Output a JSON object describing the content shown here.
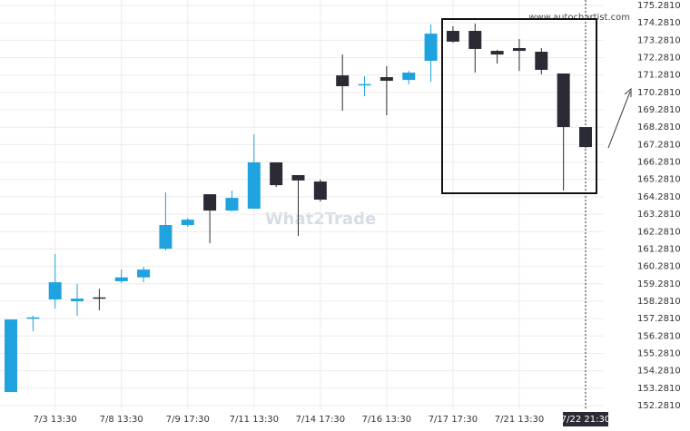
{
  "chart_data": {
    "type": "candlestick",
    "watermark": "What2Trade",
    "source": "www.autochartist.com",
    "categories": [
      null,
      null,
      "7/3 13:30",
      null,
      null,
      "7/8 13:30",
      null,
      null,
      "7/9 17:30",
      null,
      null,
      "7/11 13:30",
      null,
      null,
      "7/14 17:30",
      null,
      null,
      "7/16 13:30",
      null,
      null,
      "7/17 17:30",
      null,
      null,
      "7/21 13:30",
      null,
      null,
      "7/22 21:30"
    ],
    "open": [
      153.06,
      157.3,
      158.38,
      158.28,
      158.5,
      159.43,
      159.65,
      161.3,
      162.66,
      164.43,
      163.49,
      163.6,
      166.26,
      165.53,
      165.16,
      171.26,
      170.7,
      171.16,
      171.0,
      172.1,
      173.82,
      173.82,
      172.67,
      172.83,
      172.62,
      171.37,
      168.29
    ],
    "high": [
      157.23,
      157.45,
      160.99,
      159.27,
      159.0,
      160.1,
      160.26,
      164.53,
      163.07,
      164.43,
      164.64,
      167.87,
      166.26,
      165.53,
      165.27,
      172.46,
      171.21,
      171.79,
      171.52,
      174.19,
      174.08,
      174.24,
      172.72,
      173.35,
      172.83,
      171.37,
      168.29
    ],
    "low": [
      153.06,
      156.55,
      157.86,
      157.44,
      157.76,
      159.32,
      159.37,
      161.2,
      162.55,
      161.61,
      163.44,
      163.6,
      164.85,
      162.03,
      164.01,
      169.23,
      170.06,
      168.97,
      170.74,
      170.9,
      173.14,
      171.42,
      171.94,
      171.52,
      171.32,
      164.64,
      167.09
    ],
    "close": [
      157.23,
      157.35,
      159.37,
      158.43,
      158.46,
      159.65,
      160.1,
      162.66,
      162.97,
      163.49,
      164.22,
      166.26,
      164.95,
      165.22,
      164.12,
      170.64,
      170.76,
      170.95,
      171.42,
      173.66,
      173.2,
      172.78,
      172.46,
      172.67,
      171.58,
      168.29,
      167.14
    ],
    "up_color": "#1fa3de",
    "down_color": "#2b2b36",
    "ylim": [
      152.281,
      175.281
    ],
    "yticks": [
      {
        "value": 152.281,
        "label": "152.2810"
      },
      {
        "value": 153.281,
        "label": "153.2810"
      },
      {
        "value": 154.281,
        "label": "154.2810"
      },
      {
        "value": 155.281,
        "label": "155.2810"
      },
      {
        "value": 156.281,
        "label": "156.2810"
      },
      {
        "value": 157.281,
        "label": "157.2810"
      },
      {
        "value": 158.281,
        "label": "158.2810"
      },
      {
        "value": 159.281,
        "label": "159.2810"
      },
      {
        "value": 160.281,
        "label": "160.2810"
      },
      {
        "value": 161.281,
        "label": "161.2810"
      },
      {
        "value": 162.281,
        "label": "162.2810"
      },
      {
        "value": 163.281,
        "label": "163.2810"
      },
      {
        "value": 164.281,
        "label": "164.2810"
      },
      {
        "value": 165.281,
        "label": "165.2810"
      },
      {
        "value": 166.281,
        "label": "166.2810"
      },
      {
        "value": 167.281,
        "label": "167.2810"
      },
      {
        "value": 168.281,
        "label": "168.2810"
      },
      {
        "value": 169.281,
        "label": "169.2810"
      },
      {
        "value": 170.281,
        "label": "170.2810"
      },
      {
        "value": 171.281,
        "label": "171.2810"
      },
      {
        "value": 172.281,
        "label": "172.2810"
      },
      {
        "value": 173.281,
        "label": "173.2810"
      },
      {
        "value": 174.281,
        "label": "174.2810"
      },
      {
        "value": 175.281,
        "label": "175.2810"
      }
    ],
    "grid": true
  }
}
